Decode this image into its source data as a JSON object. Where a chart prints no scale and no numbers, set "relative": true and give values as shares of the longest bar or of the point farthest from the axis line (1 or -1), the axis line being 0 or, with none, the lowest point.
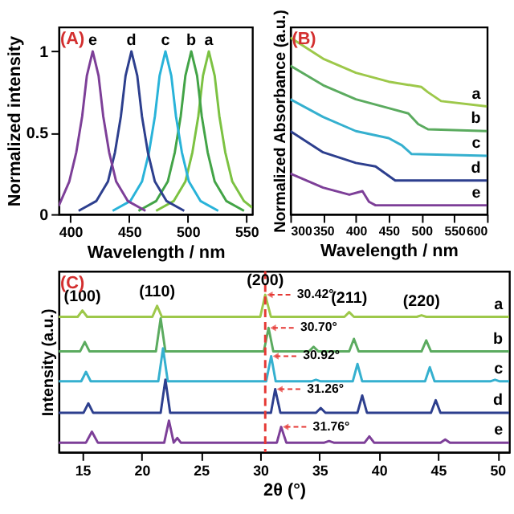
{
  "chart_data": [
    {
      "type": "line",
      "title": "(A)",
      "xlabel": "Wavelength / nm",
      "ylabel": "Normalized intensity",
      "xlim": [
        390,
        555
      ],
      "xticks": [
        400,
        450,
        500,
        550
      ],
      "ylim": [
        0,
        1.15
      ],
      "yticks": [
        0,
        0.5,
        1
      ],
      "grid": false,
      "series": [
        {
          "name": "a",
          "color": "#7cc242",
          "x": [
            473,
            488,
            498,
            504,
            509,
            513,
            518,
            523,
            527,
            532,
            538,
            548,
            555
          ],
          "values": [
            0.02,
            0.08,
            0.2,
            0.38,
            0.6,
            0.85,
            1,
            0.85,
            0.6,
            0.38,
            0.2,
            0.08,
            0.04
          ]
        },
        {
          "name": "b",
          "color": "#43a447",
          "x": [
            458,
            473,
            483,
            489,
            494,
            498,
            503,
            508,
            512,
            517,
            523,
            533,
            548
          ],
          "values": [
            0.02,
            0.08,
            0.2,
            0.38,
            0.6,
            0.85,
            1,
            0.85,
            0.6,
            0.38,
            0.2,
            0.08,
            0.02
          ]
        },
        {
          "name": "c",
          "color": "#29b3d9",
          "x": [
            436,
            451,
            461,
            467,
            472,
            476,
            481,
            486,
            490,
            495,
            501,
            511,
            526
          ],
          "values": [
            0.02,
            0.08,
            0.2,
            0.38,
            0.6,
            0.85,
            1,
            0.85,
            0.6,
            0.38,
            0.2,
            0.08,
            0.02
          ]
        },
        {
          "name": "d",
          "color": "#2d3f8e",
          "x": [
            407,
            422,
            432,
            438,
            443,
            447,
            452,
            457,
            461,
            466,
            472,
            482,
            497
          ],
          "values": [
            0.02,
            0.08,
            0.2,
            0.38,
            0.6,
            0.85,
            1,
            0.85,
            0.6,
            0.38,
            0.2,
            0.08,
            0.02
          ]
        },
        {
          "name": "e",
          "color": "#7d3f98",
          "x": [
            390,
            399,
            405,
            410,
            414,
            419,
            424,
            428,
            433,
            439,
            449,
            464
          ],
          "values": [
            0.05,
            0.2,
            0.38,
            0.6,
            0.85,
            1,
            0.85,
            0.6,
            0.38,
            0.2,
            0.08,
            0.02
          ]
        }
      ]
    },
    {
      "type": "line",
      "title": "(B)",
      "xlabel": "Wavelength / nm",
      "ylabel": "Normalized Absorbance (a.u.)",
      "relative": true,
      "xlim": [
        300,
        600
      ],
      "xticks": [
        300,
        350,
        400,
        450,
        500,
        550,
        600
      ],
      "grid": false,
      "series": [
        {
          "name": "a",
          "color": "#9dc84a",
          "x": [
            300,
            350,
            400,
            450,
            500,
            510,
            530,
            600
          ],
          "values": [
            1.0,
            0.88,
            0.8,
            0.75,
            0.72,
            0.69,
            0.64,
            0.61
          ]
        },
        {
          "name": "b",
          "color": "#5bab5f",
          "x": [
            300,
            350,
            400,
            450,
            480,
            495,
            510,
            600
          ],
          "values": [
            0.84,
            0.73,
            0.65,
            0.6,
            0.57,
            0.51,
            0.48,
            0.47
          ]
        },
        {
          "name": "c",
          "color": "#35b0cf",
          "x": [
            300,
            350,
            400,
            450,
            470,
            485,
            600
          ],
          "values": [
            0.65,
            0.55,
            0.47,
            0.43,
            0.39,
            0.34,
            0.33
          ]
        },
        {
          "name": "d",
          "color": "#2d3f8e",
          "x": [
            300,
            350,
            400,
            430,
            445,
            460,
            600
          ],
          "values": [
            0.47,
            0.35,
            0.29,
            0.27,
            0.23,
            0.19,
            0.19
          ]
        },
        {
          "name": "e",
          "color": "#7d3f98",
          "x": [
            300,
            350,
            390,
            410,
            420,
            430,
            600
          ],
          "values": [
            0.23,
            0.15,
            0.11,
            0.13,
            0.07,
            0.05,
            0.05
          ]
        }
      ]
    },
    {
      "type": "line",
      "title": "(C)",
      "xlabel": "2θ (°)",
      "ylabel": "Intensity (a.u.)",
      "relative": true,
      "xlim": [
        13,
        51
      ],
      "xticks": [
        15,
        20,
        25,
        30,
        35,
        40,
        45,
        50
      ],
      "grid": false,
      "ref_lines": [
        {
          "axis": "x",
          "value": 30.42,
          "color": "#e53935",
          "line_style": "dashed"
        }
      ],
      "annotations": [
        "(100)",
        "(110)",
        "(200)",
        "(211)",
        "(220)",
        {
          "text": "30.42°",
          "x": 30.42,
          "y": 1.0
        },
        {
          "text": "30.70°",
          "x": 30.7,
          "y": 0.79
        },
        {
          "text": "30.92°",
          "x": 30.92,
          "y": 0.61
        },
        {
          "text": "31.26°",
          "x": 31.26,
          "y": 0.4
        },
        {
          "text": "31.76°",
          "x": 31.76,
          "y": 0.16
        }
      ],
      "series": [
        {
          "name": "a",
          "color": "#9dc84a",
          "x": [
            13,
            14.6,
            15.0,
            15.4,
            20.9,
            21.3,
            21.7,
            30.0,
            30.42,
            30.9,
            37.1,
            37.5,
            37.9,
            43.2,
            43.6,
            44.0,
            51
          ],
          "values": [
            0.86,
            0.86,
            0.9,
            0.86,
            0.86,
            0.93,
            0.86,
            0.86,
            1.0,
            0.86,
            0.86,
            0.89,
            0.86,
            0.86,
            0.87,
            0.86,
            0.86
          ]
        },
        {
          "name": "b",
          "color": "#5bab5f",
          "x": [
            13,
            14.8,
            15.2,
            15.6,
            21.2,
            21.6,
            22.0,
            30.3,
            30.7,
            31.1,
            34.1,
            34.5,
            34.9,
            37.5,
            37.9,
            38.3,
            43.6,
            44.0,
            44.4,
            51
          ],
          "values": [
            0.64,
            0.64,
            0.7,
            0.64,
            0.64,
            0.85,
            0.64,
            0.64,
            0.79,
            0.64,
            0.64,
            0.67,
            0.64,
            0.64,
            0.72,
            0.64,
            0.64,
            0.71,
            0.64,
            0.64
          ]
        },
        {
          "name": "c",
          "color": "#35b0cf",
          "x": [
            13,
            14.9,
            15.3,
            15.7,
            21.4,
            21.8,
            22.2,
            30.5,
            30.92,
            31.3,
            34.3,
            34.7,
            35.1,
            37.8,
            38.2,
            38.6,
            43.9,
            44.3,
            44.7,
            49.4,
            49.8,
            50.2,
            51
          ],
          "values": [
            0.45,
            0.45,
            0.51,
            0.45,
            0.45,
            0.66,
            0.45,
            0.45,
            0.61,
            0.45,
            0.45,
            0.46,
            0.45,
            0.45,
            0.56,
            0.45,
            0.45,
            0.54,
            0.45,
            0.45,
            0.46,
            0.45,
            0.45
          ]
        },
        {
          "name": "d",
          "color": "#2d3f8e",
          "x": [
            13,
            15.1,
            15.5,
            15.9,
            21.6,
            22.0,
            22.4,
            30.9,
            31.26,
            31.7,
            34.7,
            35.1,
            35.5,
            38.2,
            38.6,
            39.0,
            44.4,
            44.8,
            45.2,
            51
          ],
          "values": [
            0.25,
            0.25,
            0.31,
            0.25,
            0.25,
            0.46,
            0.25,
            0.25,
            0.4,
            0.25,
            0.25,
            0.28,
            0.25,
            0.25,
            0.36,
            0.25,
            0.25,
            0.33,
            0.25,
            0.25
          ]
        },
        {
          "name": "e",
          "color": "#7d3f98",
          "x": [
            13,
            15.3,
            15.8,
            16.3,
            21.9,
            22.3,
            22.7,
            23.0,
            23.3,
            31.4,
            31.76,
            32.2,
            35.4,
            35.8,
            36.2,
            38.8,
            39.2,
            39.6,
            45.2,
            45.6,
            46.0,
            51
          ],
          "values": [
            0.06,
            0.06,
            0.13,
            0.06,
            0.06,
            0.2,
            0.06,
            0.09,
            0.06,
            0.06,
            0.16,
            0.06,
            0.06,
            0.07,
            0.06,
            0.06,
            0.1,
            0.06,
            0.06,
            0.08,
            0.06,
            0.06
          ]
        }
      ]
    }
  ]
}
